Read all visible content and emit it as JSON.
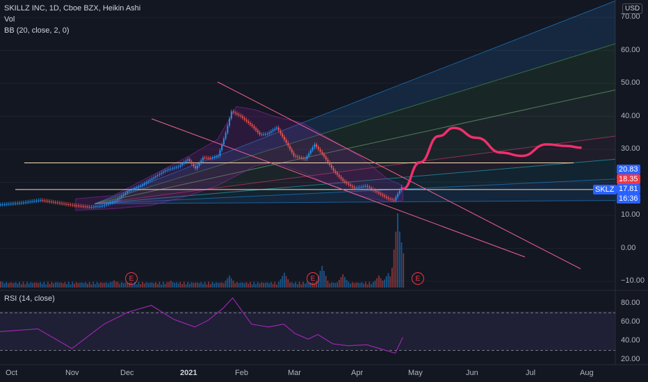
{
  "legend": {
    "title": "SKILLZ INC, 1D, Cboe BZX, Heikin Ashi",
    "vol": "Vol",
    "bb": "BB (20, close, 2, 0)",
    "rsi": "RSI (14, close)"
  },
  "currency": "USD",
  "price_axis": [
    "70.00",
    "60.00",
    "50.00",
    "40.00",
    "30.00",
    "10.00",
    "0.00",
    "−10.00"
  ],
  "rsi_axis": [
    "80.00",
    "60.00",
    "40.00",
    "20.00"
  ],
  "time_axis": [
    {
      "label": "Oct",
      "bold": false
    },
    {
      "label": "Nov",
      "bold": false
    },
    {
      "label": "Dec",
      "bold": false
    },
    {
      "label": "2021",
      "bold": true
    },
    {
      "label": "Feb",
      "bold": false
    },
    {
      "label": "Mar",
      "bold": false
    },
    {
      "label": "Apr",
      "bold": false
    },
    {
      "label": "May",
      "bold": false
    },
    {
      "label": "Jun",
      "bold": false
    },
    {
      "label": "Jul",
      "bold": false
    },
    {
      "label": "Aug",
      "bold": false
    }
  ],
  "badges": {
    "upper": {
      "text": "20.83",
      "color": "#2962ff"
    },
    "lower": {
      "text": "18.35",
      "color": "#f23645"
    },
    "symbol": "SKLZ",
    "price": "17.81",
    "countdown": "16:36"
  },
  "earnings_marker": "E",
  "colors": {
    "up": "#26a69a",
    "candle_up": "#2196f3",
    "candle_down": "#ef5350",
    "projection": "#f0306b",
    "rsi": "#9c27b0"
  },
  "chart_data": {
    "type": "line",
    "title": "SKILLZ INC, 1D, Cboe BZX, Heikin Ashi",
    "price_range": [
      -10,
      75
    ],
    "rsi_range": [
      15,
      90
    ],
    "rsi_levels": [
      70,
      30
    ],
    "horizontal_levels": [
      25.9,
      17.81
    ],
    "x_months": [
      "Oct",
      "Nov",
      "Dec",
      "Jan",
      "Feb",
      "Mar",
      "Apr",
      "May",
      "Jun",
      "Jul",
      "Aug"
    ],
    "price": [
      [
        0,
        13.2
      ],
      [
        12,
        13.8
      ],
      [
        22,
        14.6
      ],
      [
        30,
        13.9
      ],
      [
        40,
        13.0
      ],
      [
        48,
        12.5
      ],
      [
        55,
        12.9
      ],
      [
        62,
        14.5
      ],
      [
        68,
        17.2
      ],
      [
        75,
        19.0
      ],
      [
        82,
        21.5
      ],
      [
        88,
        23.6
      ],
      [
        95,
        24.8
      ],
      [
        100,
        27.0
      ],
      [
        104,
        24.2
      ],
      [
        108,
        27.5
      ],
      [
        112,
        27.3
      ],
      [
        116,
        28.0
      ],
      [
        120,
        35.0
      ],
      [
        123,
        41.5
      ],
      [
        128,
        40.0
      ],
      [
        134,
        37.0
      ],
      [
        138,
        34.5
      ],
      [
        142,
        34.7
      ],
      [
        147,
        36.6
      ],
      [
        152,
        32.0
      ],
      [
        156,
        28.0
      ],
      [
        162,
        27.0
      ],
      [
        167,
        31.5
      ],
      [
        172,
        27.8
      ],
      [
        177,
        23.5
      ],
      [
        182,
        20.4
      ],
      [
        188,
        18.2
      ],
      [
        194,
        18.9
      ],
      [
        200,
        17.0
      ],
      [
        206,
        15.0
      ],
      [
        209,
        14.5
      ],
      [
        213,
        18.6
      ]
    ],
    "volume": [
      [
        0,
        1.2
      ],
      [
        30,
        1.0
      ],
      [
        60,
        1.5
      ],
      [
        90,
        1.4
      ],
      [
        121,
        2.8
      ],
      [
        150,
        3.6
      ],
      [
        170,
        5.5
      ],
      [
        181,
        3.2
      ],
      [
        200,
        2.8
      ],
      [
        205,
        3.5
      ],
      [
        210,
        20.0
      ],
      [
        212,
        12.0
      ],
      [
        213,
        5.8
      ]
    ],
    "rsi": [
      [
        0,
        50
      ],
      [
        20,
        53
      ],
      [
        38,
        32
      ],
      [
        55,
        58
      ],
      [
        68,
        71
      ],
      [
        80,
        78
      ],
      [
        92,
        63
      ],
      [
        103,
        55
      ],
      [
        110,
        62
      ],
      [
        118,
        75
      ],
      [
        123,
        86
      ],
      [
        133,
        58
      ],
      [
        142,
        55
      ],
      [
        150,
        58
      ],
      [
        156,
        48
      ],
      [
        163,
        42
      ],
      [
        168,
        47
      ],
      [
        176,
        37
      ],
      [
        184,
        35
      ],
      [
        194,
        36
      ],
      [
        204,
        30
      ],
      [
        209,
        27
      ],
      [
        213,
        44
      ]
    ],
    "projection": [
      [
        213,
        18.0
      ],
      [
        222,
        26.0
      ],
      [
        232,
        34.0
      ],
      [
        240,
        36.5
      ],
      [
        252,
        33.5
      ],
      [
        265,
        29.0
      ],
      [
        276,
        28.0
      ],
      [
        289,
        31.5
      ],
      [
        300,
        31.0
      ],
      [
        307,
        30.5
      ]
    ],
    "earnings_days": [
      49,
      181,
      240
    ]
  }
}
